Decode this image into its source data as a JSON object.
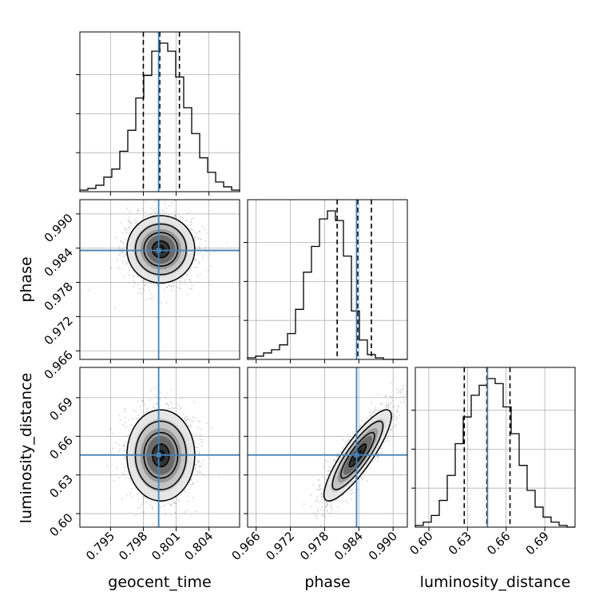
{
  "colors": {
    "truth": "#4682b4",
    "line": "#000000",
    "grid": "#b0b0b0",
    "scatter": "#808080"
  },
  "chart_data": {
    "type": "corner",
    "parameters": [
      "geocent_time",
      "phase",
      "luminosity_distance"
    ],
    "truths": [
      0.7994,
      0.9836,
      0.6455
    ],
    "quantiles": {
      "geocent_time": [
        0.798,
        0.7995,
        0.8013
      ],
      "phase": [
        0.9802,
        0.9838,
        0.9862
      ],
      "luminosity_distance": [
        0.6275,
        0.645,
        0.663
      ]
    },
    "ranges": {
      "geocent_time": [
        0.7922,
        0.8068
      ],
      "phase": [
        0.9645,
        0.9925
      ],
      "luminosity_distance": [
        0.5895,
        0.7135
      ]
    },
    "ticks": {
      "geocent_time": [
        "0.795",
        "0.798",
        "0.801",
        "0.804"
      ],
      "phase": [
        "0.966",
        "0.972",
        "0.978",
        "0.984",
        "0.990"
      ],
      "luminosity_distance": [
        "0.60",
        "0.63",
        "0.66",
        "0.69"
      ]
    },
    "histograms": {
      "geocent_time": {
        "start": 0.7922,
        "width": 0.00073,
        "counts": [
          1,
          2,
          4,
          9,
          14,
          25,
          38,
          58,
          72,
          87,
          92,
          87,
          71,
          52,
          36,
          21,
          12,
          6,
          3,
          1
        ]
      },
      "phase": {
        "start": 0.9645,
        "width": 0.0014,
        "counts": [
          1,
          2,
          4,
          6,
          9,
          16,
          31,
          54,
          70,
          87,
          92,
          86,
          64,
          30,
          12,
          3,
          1,
          0,
          0,
          0
        ]
      },
      "luminosity_distance": {
        "start": 0.5895,
        "width": 0.0062,
        "counts": [
          1,
          3,
          7,
          16,
          31,
          50,
          66,
          79,
          85,
          89,
          86,
          72,
          56,
          37,
          22,
          12,
          6,
          3,
          1,
          0
        ]
      }
    },
    "pairs": [
      {
        "x": "geocent_time",
        "y": "phase",
        "mean": [
          0.7996,
          0.9838
        ],
        "sd": [
          0.00155,
          0.00295
        ],
        "corr": 0.0
      },
      {
        "x": "geocent_time",
        "y": "luminosity_distance",
        "mean": [
          0.7996,
          0.6452
        ],
        "sd": [
          0.00155,
          0.0177
        ],
        "corr": 0.0
      },
      {
        "x": "phase",
        "y": "luminosity_distance",
        "mean": [
          0.9838,
          0.6452
        ],
        "sd": [
          0.00295,
          0.0177
        ],
        "corr": 0.86
      }
    ],
    "contour_levels_sigma": [
      0.5,
      1.0,
      1.5,
      2.0
    ],
    "grid": true
  },
  "labels": {
    "x": [
      "geocent_time",
      "phase",
      "luminosity_distance"
    ],
    "y": [
      "phase",
      "luminosity_distance"
    ]
  }
}
